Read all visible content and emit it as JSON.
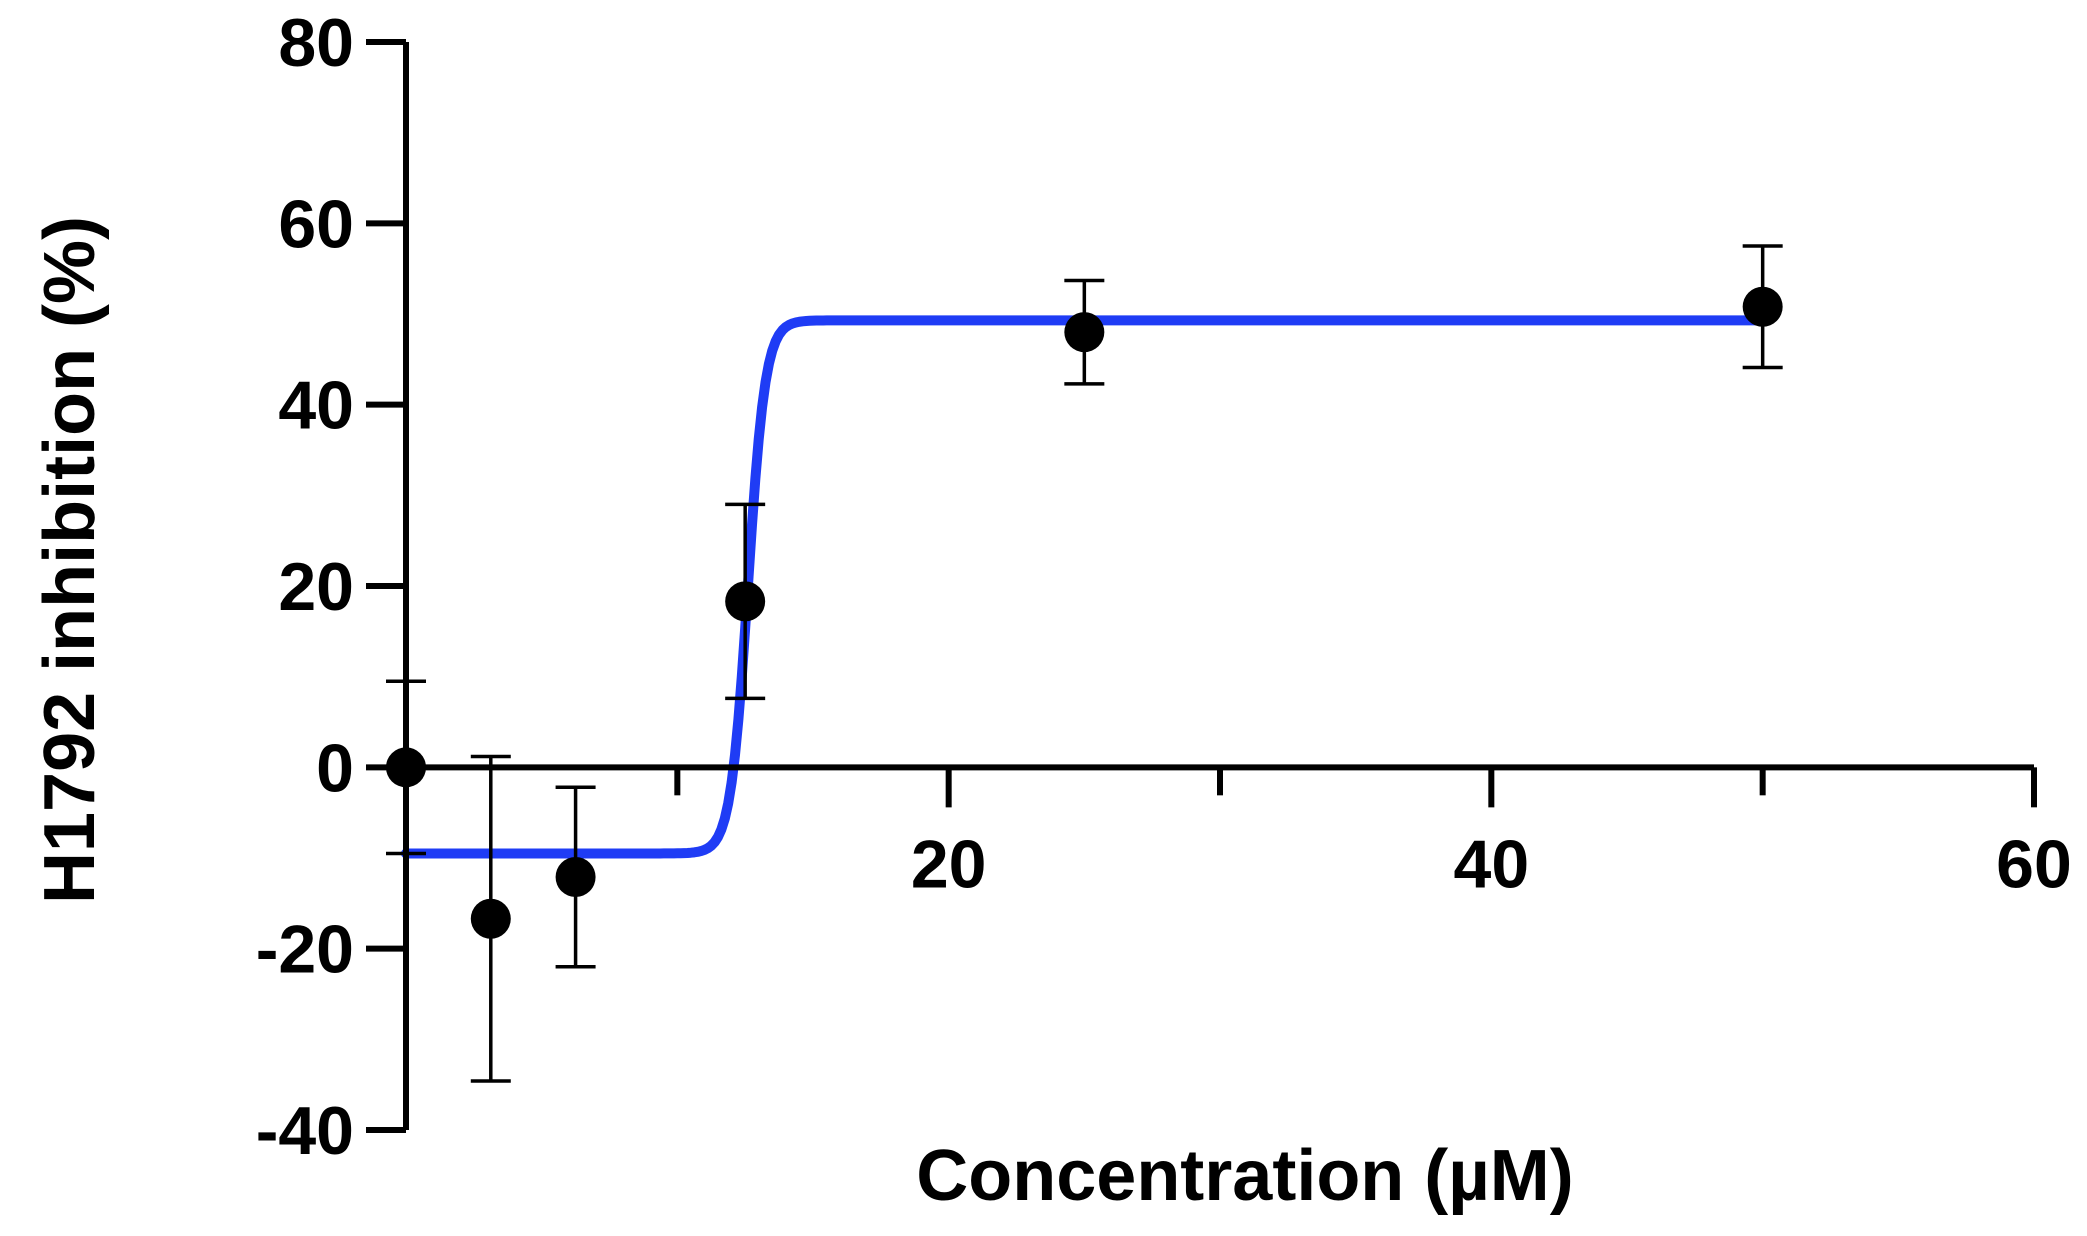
{
  "chart_data": {
    "type": "scatter",
    "title": "",
    "xlabel": "Concentration (µM)",
    "ylabel": "H1792 inhibition (%)",
    "xlim": [
      0,
      60
    ],
    "ylim": [
      -40,
      80
    ],
    "x_ticks": [
      20,
      40,
      60
    ],
    "x_minor_ticks": [
      10,
      30,
      50
    ],
    "y_ticks": [
      -40,
      -20,
      0,
      20,
      40,
      60,
      80
    ],
    "grid": false,
    "legend": "none",
    "colors": {
      "points": "#000000",
      "fit_curve": "#1f3cf5",
      "axes": "#000000"
    },
    "series": [
      {
        "x": [
          0,
          3.125,
          6.25,
          12.5,
          25,
          50
        ],
        "y": [
          0,
          -16.7,
          -12.1,
          18.3,
          48.0,
          50.8
        ],
        "error": [
          9.5,
          17.9,
          9.9,
          10.7,
          5.7,
          6.7
        ]
      }
    ],
    "fit": {
      "model": "sigmoidal dose-response",
      "bottom": -9.5,
      "top": 49.3,
      "ec50": 12.6,
      "hill_slope": 5
    }
  }
}
